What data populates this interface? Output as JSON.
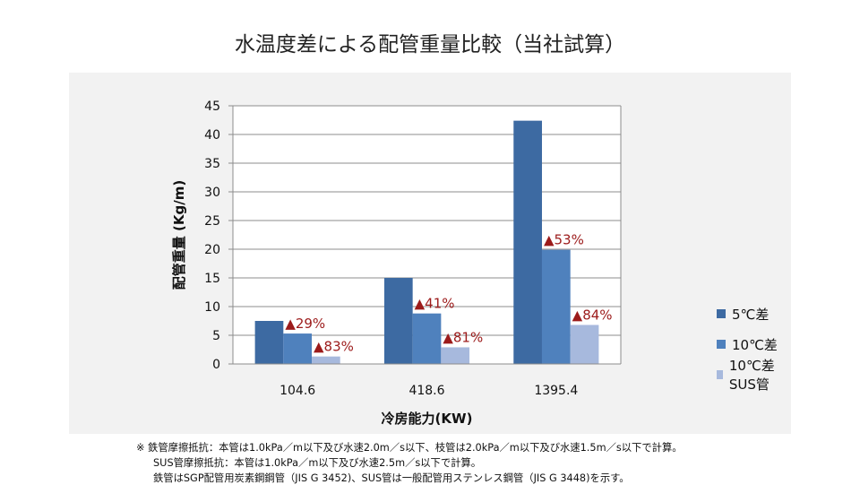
{
  "title": "水温度差による配管重量比較（当社試算）",
  "chart_data": {
    "type": "bar",
    "title": "水温度差による配管重量比較（当社試算）",
    "xlabel": "冷房能力(KW)",
    "ylabel": "配管重量 (Kg/m)",
    "categories": [
      "104.6",
      "418.6",
      "1395.4"
    ],
    "ylim": [
      0,
      45
    ],
    "yticks": [
      0,
      5,
      10,
      15,
      20,
      25,
      30,
      35,
      40,
      45
    ],
    "grid": true,
    "legend_position": "right",
    "series": [
      {
        "name": "5℃差",
        "values": [
          7.5,
          15.0,
          42.4
        ],
        "color": "#3d6aa2",
        "annotations": [
          "",
          "",
          ""
        ]
      },
      {
        "name": "10℃差",
        "values": [
          5.3,
          8.8,
          19.9
        ],
        "color": "#4f81bd",
        "annotations": [
          "▲29%",
          "▲41%",
          "▲53%"
        ]
      },
      {
        "name": "10℃差 SUS管",
        "values": [
          1.3,
          2.9,
          6.8
        ],
        "color": "#a7b9dd",
        "annotations": [
          "▲83%",
          "▲81%",
          "▲84%"
        ]
      }
    ],
    "annotation_color": "#9c1b1b"
  },
  "notes": [
    "※ 鉄管摩擦抵抗：本管は1.0kPa／m以下及び水速2.0m／s以下、枝管は2.0kPa／m以下及び水速1.5m／s以下で計算。",
    "SUS管摩擦抵抗：本管は1.0kPa／m以下及び水速2.5m／s以下で計算。",
    "鉄管はSGP配管用炭素鋼鋼管（JIS G 3452)、SUS管は一般配管用ステンレス鋼管（JIS G 3448)を示す。"
  ]
}
